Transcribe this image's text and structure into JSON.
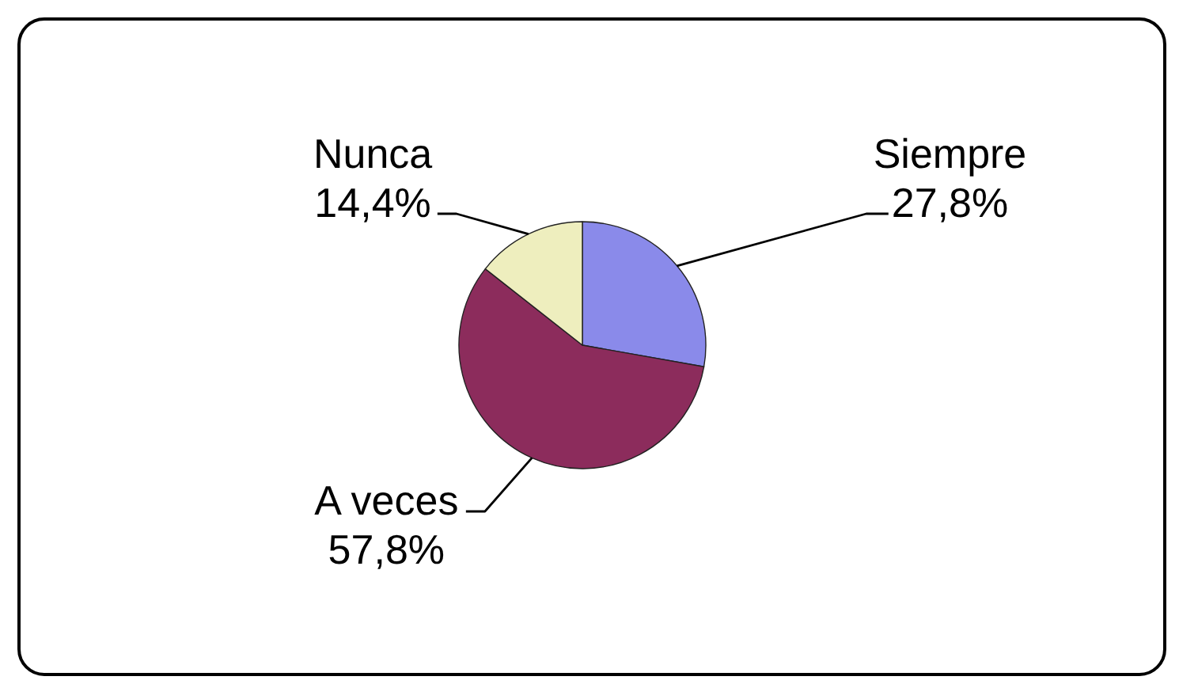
{
  "chart_data": {
    "type": "pie",
    "categories": [
      "Siempre",
      "A veces",
      "Nunca"
    ],
    "values": [
      27.8,
      57.8,
      14.4
    ],
    "colors": [
      "#8a8aea",
      "#8c2c5c",
      "#eeeebe"
    ],
    "value_labels": [
      "27,8%",
      "57,8%",
      "14,4%"
    ]
  }
}
